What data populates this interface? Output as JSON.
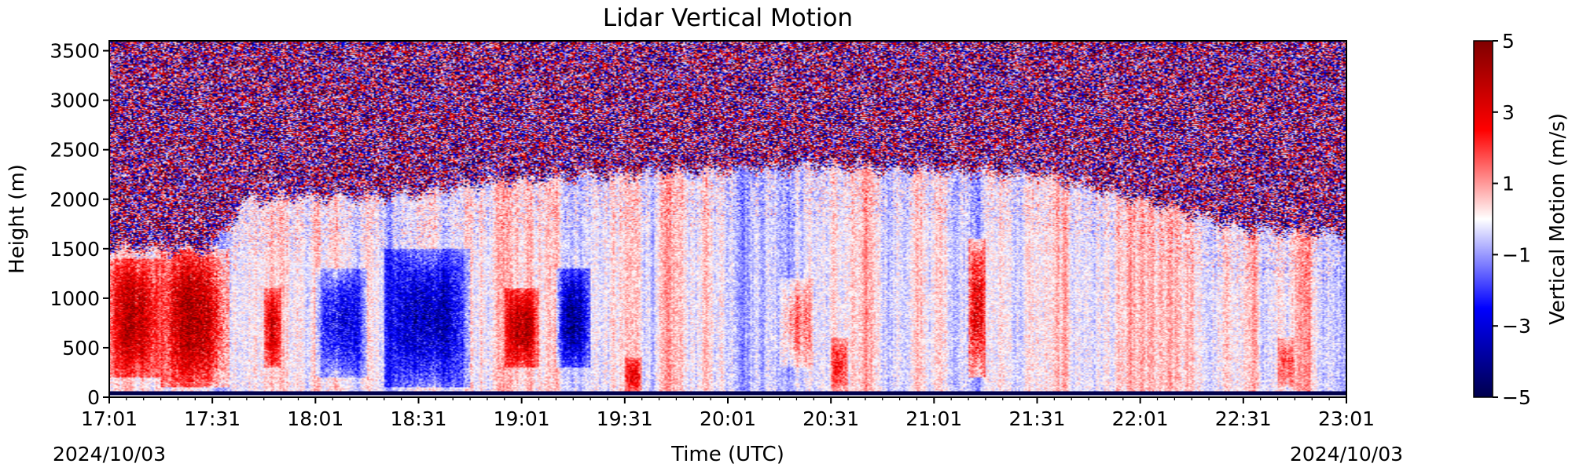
{
  "chart_data": {
    "type": "heatmap",
    "title": "Lidar Vertical Motion",
    "xlabel": "Time (UTC)",
    "ylabel": "Height (m)",
    "x_ticks": [
      "17:01",
      "17:31",
      "18:01",
      "18:31",
      "19:01",
      "19:31",
      "20:01",
      "20:31",
      "21:01",
      "21:31",
      "22:01",
      "22:31",
      "23:01"
    ],
    "x_start_date": "2024/10/03",
    "x_end_date": "2024/10/03",
    "x_range": [
      "17:01",
      "23:01"
    ],
    "ylim": [
      0,
      3600
    ],
    "y_ticks": [
      0,
      500,
      1000,
      1500,
      2000,
      2500,
      3000,
      3500
    ],
    "colorbar": {
      "label": "Vertical Motion (m/s)",
      "range": [
        -5,
        5
      ],
      "ticks": [
        5,
        3,
        1,
        -1,
        -3,
        -5
      ],
      "tick_labels": [
        "5",
        "3",
        "1",
        "−1",
        "−3",
        "−5"
      ],
      "colormap": "seismic"
    },
    "colors": {
      "low": "#00004c",
      "mid_low": "#0000ff",
      "mid": "#ffffff",
      "mid_high": "#ff0000",
      "high": "#800000"
    },
    "noise_floor_height_by_hour": [
      {
        "time": "17:01",
        "height": 1500
      },
      {
        "time": "17:31",
        "height": 1500
      },
      {
        "time": "17:41",
        "height": 2000
      },
      {
        "time": "18:31",
        "height": 2050
      },
      {
        "time": "18:46",
        "height": 2150
      },
      {
        "time": "19:01",
        "height": 2200
      },
      {
        "time": "20:01",
        "height": 2300
      },
      {
        "time": "20:31",
        "height": 2330
      },
      {
        "time": "21:01",
        "height": 2300
      },
      {
        "time": "21:31",
        "height": 2250
      },
      {
        "time": "22:01",
        "height": 2000
      },
      {
        "time": "22:31",
        "height": 1700
      },
      {
        "time": "23:01",
        "height": 1650
      }
    ],
    "features": [
      {
        "type": "updraft",
        "time_start": "17:01",
        "time_end": "17:16",
        "height_low": 200,
        "height_high": 1400,
        "value": 3
      },
      {
        "type": "updraft",
        "time_start": "17:16",
        "time_end": "17:36",
        "height_low": 100,
        "height_high": 1500,
        "value": 3.5
      },
      {
        "type": "updraft",
        "time_start": "17:46",
        "time_end": "17:51",
        "height_low": 300,
        "height_high": 1100,
        "value": 2.5
      },
      {
        "type": "downdraft",
        "time_start": "18:01",
        "time_end": "18:16",
        "height_low": 200,
        "height_high": 1300,
        "value": -2.5
      },
      {
        "type": "downdraft",
        "time_start": "18:21",
        "time_end": "18:46",
        "height_low": 100,
        "height_high": 1500,
        "value": -3
      },
      {
        "type": "updraft",
        "time_start": "18:56",
        "time_end": "19:06",
        "height_low": 300,
        "height_high": 1100,
        "value": 3
      },
      {
        "type": "downdraft",
        "time_start": "19:11",
        "time_end": "19:21",
        "height_low": 300,
        "height_high": 1300,
        "value": -3
      },
      {
        "type": "updraft",
        "time_start": "19:31",
        "time_end": "19:36",
        "height_low": 50,
        "height_high": 400,
        "value": 2
      },
      {
        "type": "updraft",
        "time_start": "20:16",
        "time_end": "20:26",
        "height_low": 300,
        "height_high": 1200,
        "value": 1.5
      },
      {
        "type": "updraft",
        "time_start": "20:31",
        "time_end": "20:36",
        "height_low": 50,
        "height_high": 600,
        "value": 2
      },
      {
        "type": "updraft",
        "time_start": "21:11",
        "time_end": "21:16",
        "height_low": 200,
        "height_high": 1600,
        "value": 3.5
      },
      {
        "type": "updraft",
        "time_start": "22:41",
        "time_end": "22:46",
        "height_low": 100,
        "height_high": 600,
        "value": 1.5
      }
    ],
    "grid": false
  }
}
